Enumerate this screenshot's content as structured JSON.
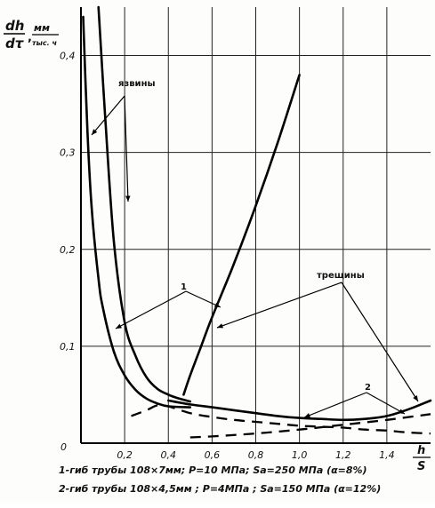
{
  "chart_data": {
    "type": "line",
    "title": "",
    "ylabel": {
      "numerator": "dh",
      "denominator": "dτ",
      "units_top": "мм",
      "units_bottom": "тыс. ч"
    },
    "xlabel": {
      "numerator": "h",
      "denominator": "S"
    },
    "xlim": [
      0,
      1.6
    ],
    "ylim": [
      0,
      0.45
    ],
    "x_ticks": [
      "0,2",
      "0,4",
      "0,6",
      "0,8",
      "1,0",
      "1,2",
      "1,4"
    ],
    "x_tick_values": [
      0.2,
      0.4,
      0.6,
      0.8,
      1.0,
      1.2,
      1.4
    ],
    "y_ticks": [
      "0,1",
      "0,2",
      "0,3",
      "0,4"
    ],
    "y_tick_values": [
      0.1,
      0.2,
      0.3,
      0.4
    ],
    "origin_label": "0",
    "grid": true,
    "series": [
      {
        "label": "1",
        "group": "язвины",
        "style": "solid",
        "x": [
          0.08,
          0.11,
          0.15,
          0.2,
          0.25,
          0.3,
          0.35,
          0.4,
          0.45,
          0.5
        ],
        "y": [
          0.45,
          0.34,
          0.21,
          0.125,
          0.09,
          0.068,
          0.056,
          0.05,
          0.046,
          0.043
        ]
      },
      {
        "label": "1",
        "group": "трещины",
        "style": "solid",
        "x": [
          0.47,
          0.5,
          0.55,
          0.6,
          0.7,
          0.8,
          0.9,
          1.0
        ],
        "y": [
          0.05,
          0.07,
          0.1,
          0.13,
          0.185,
          0.245,
          0.31,
          0.38
        ]
      },
      {
        "label": "",
        "group": "язвины",
        "style": "solid",
        "x": [
          0.01,
          0.03,
          0.05,
          0.08,
          0.1,
          0.15,
          0.2,
          0.25,
          0.3,
          0.35,
          0.4,
          0.5
        ],
        "y": [
          0.44,
          0.32,
          0.24,
          0.17,
          0.14,
          0.095,
          0.07,
          0.055,
          0.046,
          0.041,
          0.038,
          0.037
        ]
      },
      {
        "label": "",
        "group": "трещины",
        "style": "solid",
        "x": [
          0.4,
          0.5,
          0.6,
          0.7,
          0.8,
          0.9,
          1.0,
          1.1,
          1.2,
          1.3,
          1.4,
          1.5,
          1.6
        ],
        "y": [
          0.044,
          0.04,
          0.037,
          0.034,
          0.031,
          0.028,
          0.026,
          0.025,
          0.024,
          0.025,
          0.028,
          0.035,
          0.044
        ]
      },
      {
        "label": "2",
        "group": "язвины",
        "style": "dashed",
        "x": [
          0.23,
          0.3,
          0.35,
          0.4,
          0.5,
          0.6,
          0.7,
          0.8,
          0.9,
          1.0,
          1.1,
          1.2,
          1.3,
          1.4,
          1.5,
          1.6
        ],
        "y": [
          0.028,
          0.034,
          0.039,
          0.038,
          0.031,
          0.027,
          0.024,
          0.022,
          0.02,
          0.018,
          0.017,
          0.016,
          0.014,
          0.013,
          0.011,
          0.01
        ]
      },
      {
        "label": "2",
        "group": "трещины",
        "style": "dashed",
        "x": [
          0.5,
          0.6,
          0.8,
          1.0,
          1.2,
          1.4,
          1.6
        ],
        "y": [
          0.006,
          0.007,
          0.01,
          0.014,
          0.019,
          0.024,
          0.03
        ]
      }
    ],
    "annotations": [
      {
        "id": "yazviny",
        "text": "язвины"
      },
      {
        "id": "treshchiny",
        "text": "трещины"
      },
      {
        "id": "one",
        "text": "1"
      },
      {
        "id": "two",
        "text": "2"
      }
    ],
    "captions": [
      "1-гиб трубы 108×7мм; P=10 МПа; Sa=250 МПа (α=8%)",
      "2-гиб трубы 108×4,5мм ; P=4МПа ; Sa=150 МПа (α=12%)"
    ]
  }
}
